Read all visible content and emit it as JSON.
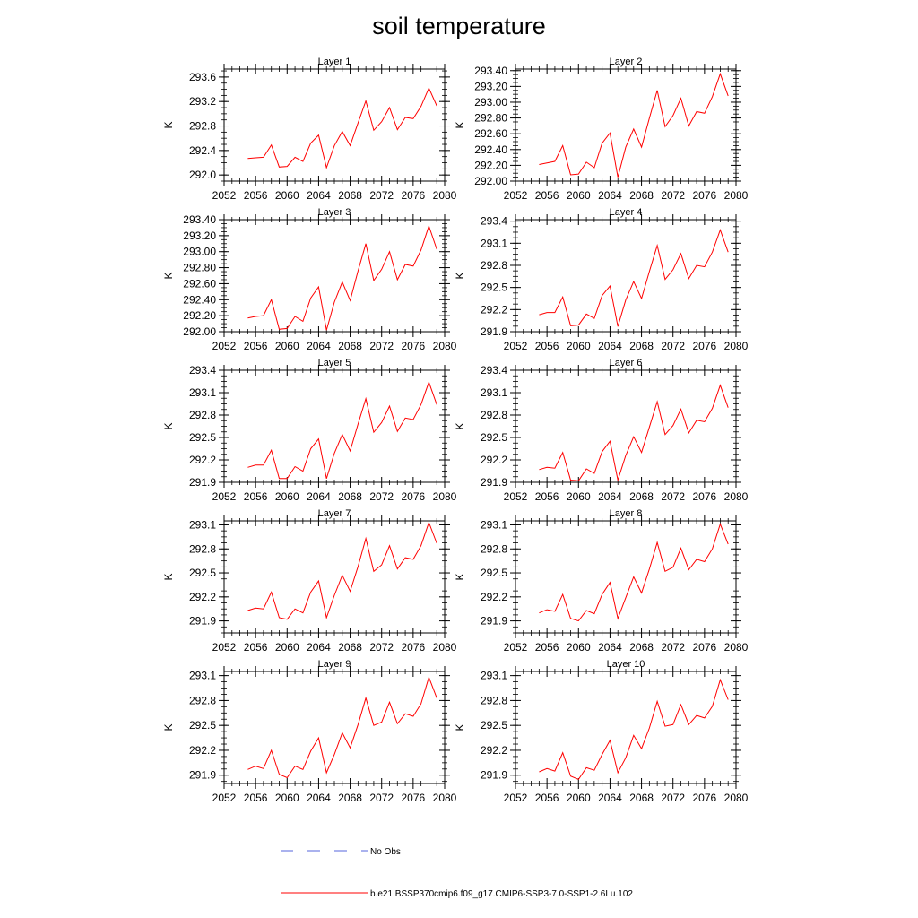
{
  "title": "soil temperature",
  "chart_data": [
    {
      "type": "line",
      "title": "Layer 1",
      "ylabel": "K",
      "ylim": [
        291.9,
        293.73
      ],
      "yticks": [
        "292.0",
        "292.4",
        "292.8",
        "293.2",
        "293.6"
      ],
      "xticks": [
        "2052",
        "2056",
        "2060",
        "2064",
        "2068",
        "2072",
        "2076",
        "2080"
      ],
      "xlim": [
        2052,
        2080
      ],
      "series": [
        {
          "name": "b.e21.BSSP370cmip6.f09_g17.CMIP6-SSP3-7.0-SSP1-2.6Lu.102",
          "color": "#ff0000",
          "x": [
            2055,
            2056,
            2057,
            2058,
            2059,
            2060,
            2061,
            2062,
            2063,
            2064,
            2065,
            2066,
            2067,
            2068,
            2069,
            2070,
            2071,
            2072,
            2073,
            2074,
            2075,
            2076,
            2077,
            2078,
            2079
          ],
          "values": [
            292.27,
            292.28,
            292.29,
            292.49,
            292.13,
            292.14,
            292.29,
            292.22,
            292.52,
            292.65,
            292.12,
            292.48,
            292.71,
            292.48,
            292.85,
            293.21,
            292.73,
            292.87,
            293.1,
            292.74,
            292.94,
            292.92,
            293.12,
            293.42,
            293.13
          ]
        }
      ]
    },
    {
      "type": "line",
      "title": "Layer 2",
      "ylabel": "K",
      "ylim": [
        292.0,
        293.42
      ],
      "yticks": [
        "292.00",
        "292.20",
        "292.40",
        "292.60",
        "292.80",
        "293.00",
        "293.20",
        "293.40"
      ],
      "xticks": [
        "2052",
        "2056",
        "2060",
        "2064",
        "2068",
        "2072",
        "2076",
        "2080"
      ],
      "xlim": [
        2052,
        2080
      ],
      "series": [
        {
          "name": "b.e21.BSSP370cmip6.f09_g17.CMIP6-SSP3-7.0-SSP1-2.6Lu.102",
          "color": "#ff0000",
          "x": [
            2055,
            2056,
            2057,
            2058,
            2059,
            2060,
            2061,
            2062,
            2063,
            2064,
            2065,
            2066,
            2067,
            2068,
            2069,
            2070,
            2071,
            2072,
            2073,
            2074,
            2075,
            2076,
            2077,
            2078,
            2079
          ],
          "values": [
            292.21,
            292.23,
            292.25,
            292.45,
            292.08,
            292.09,
            292.24,
            292.17,
            292.48,
            292.61,
            292.05,
            292.43,
            292.66,
            292.43,
            292.8,
            293.15,
            292.69,
            292.83,
            293.05,
            292.7,
            292.88,
            292.86,
            293.07,
            293.36,
            293.08
          ]
        }
      ]
    },
    {
      "type": "line",
      "title": "Layer 3",
      "ylabel": "K",
      "ylim": [
        292.0,
        293.4
      ],
      "yticks": [
        "292.00",
        "292.20",
        "292.40",
        "292.60",
        "292.80",
        "293.00",
        "293.20",
        "293.40"
      ],
      "xticks": [
        "2052",
        "2056",
        "2060",
        "2064",
        "2068",
        "2072",
        "2076",
        "2080"
      ],
      "xlim": [
        2052,
        2080
      ],
      "series": [
        {
          "name": "b.e21.BSSP370cmip6.f09_g17.CMIP6-SSP3-7.0-SSP1-2.6Lu.102",
          "color": "#ff0000",
          "x": [
            2055,
            2056,
            2057,
            2058,
            2059,
            2060,
            2061,
            2062,
            2063,
            2064,
            2065,
            2066,
            2067,
            2068,
            2069,
            2070,
            2071,
            2072,
            2073,
            2074,
            2075,
            2076,
            2077,
            2078,
            2079
          ],
          "values": [
            292.17,
            292.19,
            292.2,
            292.4,
            292.03,
            292.04,
            292.19,
            292.13,
            292.42,
            292.56,
            292.02,
            292.37,
            292.62,
            292.39,
            292.76,
            293.1,
            292.64,
            292.78,
            293.0,
            292.65,
            292.84,
            292.82,
            293.02,
            293.32,
            293.03
          ]
        }
      ]
    },
    {
      "type": "line",
      "title": "Layer 4",
      "ylabel": "K",
      "ylim": [
        291.9,
        293.42
      ],
      "yticks": [
        "291.9",
        "292.2",
        "292.5",
        "292.8",
        "293.1",
        "293.4"
      ],
      "xticks": [
        "2052",
        "2056",
        "2060",
        "2064",
        "2068",
        "2072",
        "2076",
        "2080"
      ],
      "xlim": [
        2052,
        2080
      ],
      "series": [
        {
          "name": "b.e21.BSSP370cmip6.f09_g17.CMIP6-SSP3-7.0-SSP1-2.6Lu.102",
          "color": "#ff0000",
          "x": [
            2055,
            2056,
            2057,
            2058,
            2059,
            2060,
            2061,
            2062,
            2063,
            2064,
            2065,
            2066,
            2067,
            2068,
            2069,
            2070,
            2071,
            2072,
            2073,
            2074,
            2075,
            2076,
            2077,
            2078,
            2079
          ],
          "values": [
            292.13,
            292.16,
            292.16,
            292.37,
            291.98,
            291.99,
            292.14,
            292.08,
            292.39,
            292.52,
            291.97,
            292.33,
            292.58,
            292.35,
            292.72,
            293.07,
            292.61,
            292.74,
            292.96,
            292.62,
            292.8,
            292.78,
            292.98,
            293.28,
            292.98
          ]
        }
      ]
    },
    {
      "type": "line",
      "title": "Layer 5",
      "ylabel": "K",
      "ylim": [
        291.9,
        293.4
      ],
      "yticks": [
        "291.9",
        "292.2",
        "292.5",
        "292.8",
        "293.1",
        "293.4"
      ],
      "xticks": [
        "2052",
        "2056",
        "2060",
        "2064",
        "2068",
        "2072",
        "2076",
        "2080"
      ],
      "xlim": [
        2052,
        2080
      ],
      "series": [
        {
          "name": "b.e21.BSSP370cmip6.f09_g17.CMIP6-SSP3-7.0-SSP1-2.6Lu.102",
          "color": "#ff0000",
          "x": [
            2055,
            2056,
            2057,
            2058,
            2059,
            2060,
            2061,
            2062,
            2063,
            2064,
            2065,
            2066,
            2067,
            2068,
            2069,
            2070,
            2071,
            2072,
            2073,
            2074,
            2075,
            2076,
            2077,
            2078,
            2079
          ],
          "values": [
            292.1,
            292.13,
            292.13,
            292.33,
            291.95,
            291.95,
            292.11,
            292.05,
            292.35,
            292.48,
            291.95,
            292.29,
            292.54,
            292.32,
            292.68,
            293.02,
            292.57,
            292.7,
            292.92,
            292.58,
            292.76,
            292.74,
            292.94,
            293.24,
            292.94
          ]
        }
      ]
    },
    {
      "type": "line",
      "title": "Layer 6",
      "ylabel": "K",
      "ylim": [
        291.9,
        293.4
      ],
      "yticks": [
        "291.9",
        "292.2",
        "292.5",
        "292.8",
        "293.1",
        "293.4"
      ],
      "xticks": [
        "2052",
        "2056",
        "2060",
        "2064",
        "2068",
        "2072",
        "2076",
        "2080"
      ],
      "xlim": [
        2052,
        2080
      ],
      "series": [
        {
          "name": "b.e21.BSSP370cmip6.f09_g17.CMIP6-SSP3-7.0-SSP1-2.6Lu.102",
          "color": "#ff0000",
          "x": [
            2055,
            2056,
            2057,
            2058,
            2059,
            2060,
            2061,
            2062,
            2063,
            2064,
            2065,
            2066,
            2067,
            2068,
            2069,
            2070,
            2071,
            2072,
            2073,
            2074,
            2075,
            2076,
            2077,
            2078,
            2079
          ],
          "values": [
            292.07,
            292.1,
            292.09,
            292.3,
            291.93,
            291.92,
            292.08,
            292.02,
            292.31,
            292.45,
            291.93,
            292.26,
            292.51,
            292.3,
            292.64,
            292.98,
            292.54,
            292.66,
            292.88,
            292.56,
            292.73,
            292.71,
            292.89,
            293.2,
            292.9
          ]
        }
      ]
    },
    {
      "type": "line",
      "title": "Layer 7",
      "ylabel": "K",
      "ylim": [
        291.75,
        293.15
      ],
      "yticks": [
        "291.9",
        "292.2",
        "292.5",
        "292.8",
        "293.1"
      ],
      "xticks": [
        "2052",
        "2056",
        "2060",
        "2064",
        "2068",
        "2072",
        "2076",
        "2080"
      ],
      "xlim": [
        2052,
        2080
      ],
      "series": [
        {
          "name": "b.e21.BSSP370cmip6.f09_g17.CMIP6-SSP3-7.0-SSP1-2.6Lu.102",
          "color": "#ff0000",
          "x": [
            2055,
            2056,
            2057,
            2058,
            2059,
            2060,
            2061,
            2062,
            2063,
            2064,
            2065,
            2066,
            2067,
            2068,
            2069,
            2070,
            2071,
            2072,
            2073,
            2074,
            2075,
            2076,
            2077,
            2078,
            2079
          ],
          "values": [
            292.03,
            292.06,
            292.05,
            292.26,
            291.94,
            291.92,
            292.05,
            292.0,
            292.26,
            292.4,
            291.94,
            292.22,
            292.47,
            292.27,
            292.58,
            292.93,
            292.52,
            292.6,
            292.84,
            292.55,
            292.69,
            292.67,
            292.84,
            293.13,
            292.87
          ]
        }
      ]
    },
    {
      "type": "line",
      "title": "Layer 8",
      "ylabel": "K",
      "ylim": [
        291.75,
        293.15
      ],
      "yticks": [
        "291.9",
        "292.2",
        "292.5",
        "292.8",
        "293.1"
      ],
      "xticks": [
        "2052",
        "2056",
        "2060",
        "2064",
        "2068",
        "2072",
        "2076",
        "2080"
      ],
      "xlim": [
        2052,
        2080
      ],
      "series": [
        {
          "name": "b.e21.BSSP370cmip6.f09_g17.CMIP6-SSP3-7.0-SSP1-2.6Lu.102",
          "color": "#ff0000",
          "x": [
            2055,
            2056,
            2057,
            2058,
            2059,
            2060,
            2061,
            2062,
            2063,
            2064,
            2065,
            2066,
            2067,
            2068,
            2069,
            2070,
            2071,
            2072,
            2073,
            2074,
            2075,
            2076,
            2077,
            2078,
            2079
          ],
          "values": [
            292.0,
            292.04,
            292.02,
            292.23,
            291.93,
            291.9,
            292.03,
            291.99,
            292.23,
            292.38,
            291.93,
            292.19,
            292.45,
            292.25,
            292.55,
            292.88,
            292.52,
            292.57,
            292.81,
            292.54,
            292.67,
            292.64,
            292.8,
            293.11,
            292.86
          ]
        }
      ]
    },
    {
      "type": "line",
      "title": "Layer 9",
      "ylabel": "K",
      "ylim": [
        291.8,
        293.15
      ],
      "yticks": [
        "291.9",
        "292.2",
        "292.5",
        "292.8",
        "293.1"
      ],
      "xticks": [
        "2052",
        "2056",
        "2060",
        "2064",
        "2068",
        "2072",
        "2076",
        "2080"
      ],
      "xlim": [
        2052,
        2080
      ],
      "series": [
        {
          "name": "b.e21.BSSP370cmip6.f09_g17.CMIP6-SSP3-7.0-SSP1-2.6Lu.102",
          "color": "#ff0000",
          "x": [
            2055,
            2056,
            2057,
            2058,
            2059,
            2060,
            2061,
            2062,
            2063,
            2064,
            2065,
            2066,
            2067,
            2068,
            2069,
            2070,
            2071,
            2072,
            2073,
            2074,
            2075,
            2076,
            2077,
            2078,
            2079
          ],
          "values": [
            291.97,
            292.01,
            291.98,
            292.2,
            291.91,
            291.87,
            292.01,
            291.97,
            292.19,
            292.35,
            291.93,
            292.15,
            292.41,
            292.23,
            292.51,
            292.83,
            292.5,
            292.54,
            292.78,
            292.52,
            292.64,
            292.61,
            292.76,
            293.08,
            292.83
          ]
        }
      ]
    },
    {
      "type": "line",
      "title": "Layer 10",
      "ylabel": "K",
      "ylim": [
        291.8,
        293.15
      ],
      "yticks": [
        "291.9",
        "292.2",
        "292.5",
        "292.8",
        "293.1"
      ],
      "xticks": [
        "2052",
        "2056",
        "2060",
        "2064",
        "2068",
        "2072",
        "2076",
        "2080"
      ],
      "xlim": [
        2052,
        2080
      ],
      "series": [
        {
          "name": "b.e21.BSSP370cmip6.f09_g17.CMIP6-SSP3-7.0-SSP1-2.6Lu.102",
          "color": "#ff0000",
          "x": [
            2055,
            2056,
            2057,
            2058,
            2059,
            2060,
            2061,
            2062,
            2063,
            2064,
            2065,
            2066,
            2067,
            2068,
            2069,
            2070,
            2071,
            2072,
            2073,
            2074,
            2075,
            2076,
            2077,
            2078,
            2079
          ],
          "values": [
            291.94,
            291.98,
            291.95,
            292.17,
            291.89,
            291.85,
            291.99,
            291.96,
            292.15,
            292.32,
            291.93,
            292.11,
            292.38,
            292.22,
            292.47,
            292.79,
            292.49,
            292.51,
            292.75,
            292.51,
            292.62,
            292.59,
            292.73,
            293.05,
            292.81
          ]
        }
      ]
    }
  ],
  "legend": {
    "items": [
      {
        "label": "No Obs",
        "color": "#5566dd",
        "dash": true
      },
      {
        "label": "b.e21.BSSP370cmip6.f09_g17.CMIP6-SSP3-7.0-SSP1-2.6Lu.102",
        "color": "#ff0000",
        "dash": false
      }
    ]
  }
}
